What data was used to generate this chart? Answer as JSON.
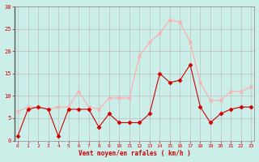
{
  "x": [
    0,
    1,
    2,
    3,
    4,
    5,
    6,
    7,
    8,
    9,
    10,
    11,
    12,
    13,
    14,
    15,
    16,
    17,
    18,
    19,
    20,
    21,
    22,
    23
  ],
  "vent_moyen": [
    1,
    7,
    7.5,
    7,
    1,
    7,
    7,
    7,
    3,
    6,
    4,
    4,
    4,
    6,
    15,
    13,
    13.5,
    17,
    7.5,
    4,
    6,
    7,
    7.5,
    7.5
  ],
  "rafales": [
    6.5,
    7.5,
    7.5,
    7,
    7.5,
    7.5,
    11,
    7.5,
    7,
    9.5,
    9.5,
    9.5,
    19,
    22,
    24,
    27,
    26.5,
    22,
    13,
    9,
    9,
    11,
    11,
    12
  ],
  "color_moyen": "#cc0000",
  "color_rafales": "#ffaaaa",
  "bg_color": "#cceee8",
  "grid_color": "#bbbbbb",
  "xlabel": "Vent moyen/en rafales ( km/h )",
  "ylabel_ticks": [
    0,
    5,
    10,
    15,
    20,
    25,
    30
  ],
  "xtick_labels": [
    "0",
    "1",
    "2",
    "3",
    "4",
    "5",
    "6",
    "7",
    "8",
    "9",
    "10",
    "11",
    "12",
    "13",
    "14",
    "15",
    "16",
    "17",
    "18",
    "19",
    "20",
    "21",
    "22",
    "23"
  ],
  "xlim": [
    0,
    23
  ],
  "ylim": [
    0,
    30
  ],
  "xlabel_color": "#cc0000",
  "tick_color": "#cc0000",
  "spine_color": "#888888",
  "marker_moyen": "D",
  "marker_rafales": "x",
  "linewidth": 0.8,
  "markersize_moyen": 2.5,
  "markersize_rafales": 3.5
}
